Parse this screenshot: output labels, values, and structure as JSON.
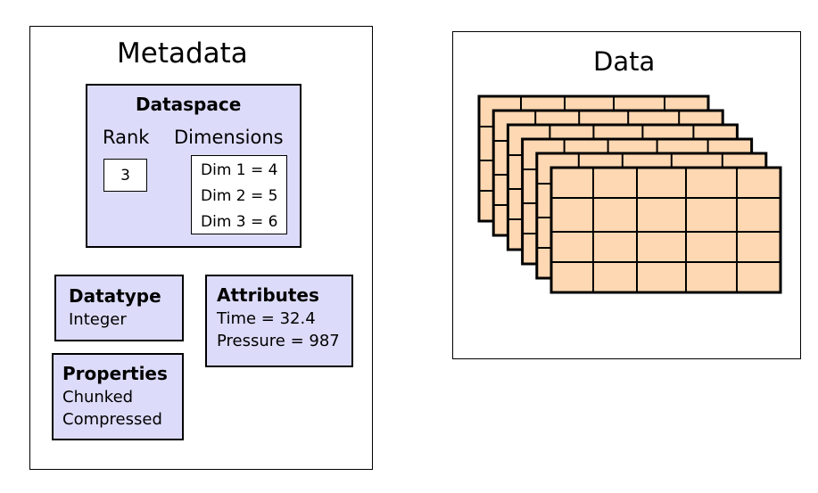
{
  "metadata": {
    "title": "Metadata",
    "dataspace": {
      "title": "Dataspace",
      "rank_label": "Rank",
      "rank_value": "3",
      "dimensions_label": "Dimensions",
      "dimensions": [
        "Dim 1 = 4",
        "Dim 2 = 5",
        "Dim 3 = 6"
      ]
    },
    "datatype": {
      "title": "Datatype",
      "value": "Integer"
    },
    "attributes": {
      "title": "Attributes",
      "items": [
        "Time = 32.4",
        "Pressure = 987"
      ]
    },
    "properties": {
      "title": "Properties",
      "items": [
        "Chunked",
        "Compressed"
      ]
    }
  },
  "data": {
    "title": "Data",
    "layers": 6,
    "rows": 4,
    "cols": 5,
    "fill_color": "#fed8b2",
    "line_color": "#000000"
  },
  "colors": {
    "box_fill": "#dcdcfa"
  }
}
